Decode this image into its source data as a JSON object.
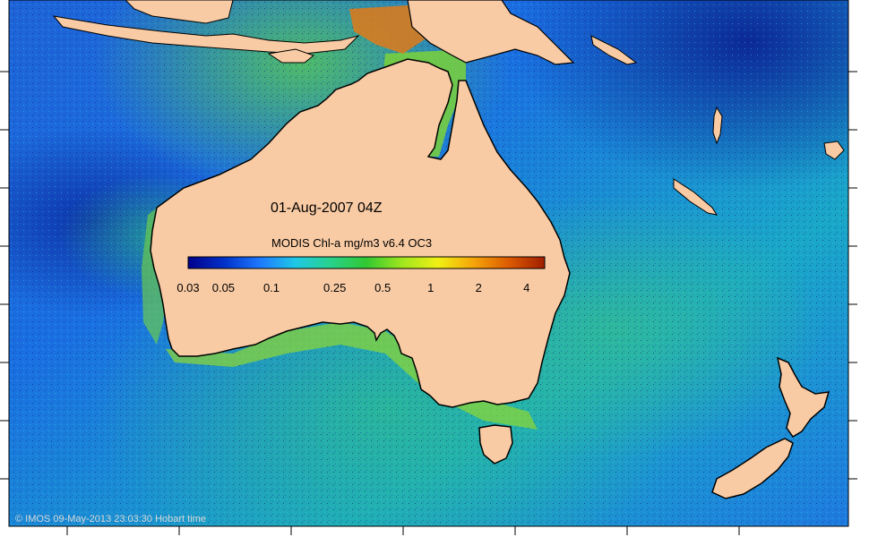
{
  "map": {
    "date_label": "01-Aug-2007 04Z",
    "colorbar": {
      "title": "MODIS Chl-a mg/m3 v6.4 OC3",
      "ticks": [
        "0.03",
        "0.05",
        "0.1",
        "0.25",
        "0.5",
        "1",
        "2",
        "4"
      ],
      "colors": [
        "#00008b",
        "#0030c8",
        "#1e78ff",
        "#1ec8e6",
        "#28d28c",
        "#32c832",
        "#a0e61e",
        "#f0f014",
        "#f5a50a",
        "#dc5a00",
        "#a01e00"
      ]
    },
    "credit": "© IMOS 09-May-2013 23:03:30 Hobart time",
    "colors": {
      "land": "#f9cba4",
      "coastline": "#000000",
      "ocean_deep": "#0a2a9c",
      "ocean_mid": "#1a74e6",
      "ocean_shelf": "#2fbf8a",
      "high_chl": "#e46a10"
    }
  }
}
